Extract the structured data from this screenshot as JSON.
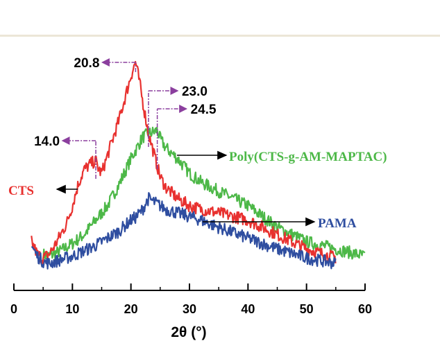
{
  "chart_data": {
    "type": "line",
    "title": "",
    "xlabel": "2θ (°)",
    "ylabel": "",
    "xlim": [
      0,
      60
    ],
    "xticks": [
      0,
      10,
      20,
      30,
      40,
      50,
      60
    ],
    "y_axis_shown": false,
    "grid": false,
    "colors": {
      "CTS": "#e8312f",
      "Poly": "#4db848",
      "PAMA": "#2f4ea0",
      "annotation_arrow": "#8b3f9e"
    },
    "series": [
      {
        "name": "CTS",
        "color": "#e8312f",
        "label_side": "left",
        "x": [
          3,
          4,
          5,
          6,
          7,
          8,
          9,
          10,
          11,
          12,
          13,
          14,
          14.5,
          15,
          16,
          17,
          18,
          19,
          20,
          20.8,
          21.5,
          22,
          23,
          24,
          25,
          26,
          28,
          30,
          32,
          35,
          40,
          45,
          50,
          55
        ],
        "y": [
          12,
          5,
          3,
          5,
          10,
          16,
          22,
          32,
          44,
          52,
          55,
          57,
          52,
          50,
          60,
          70,
          80,
          92,
          104,
          112,
          100,
          90,
          72,
          60,
          48,
          42,
          36,
          32,
          30,
          28,
          24,
          16,
          8,
          3
        ]
      },
      {
        "name": "Poly(CTS-g-AM-MAPTAC)",
        "color": "#4db848",
        "label_side": "right",
        "x": [
          5,
          6,
          8,
          10,
          12,
          14,
          16,
          18,
          20,
          21,
          22,
          23,
          24,
          24.5,
          25,
          26,
          28,
          30,
          32,
          35,
          40,
          45,
          50,
          55,
          60
        ],
        "y": [
          5,
          4,
          7,
          11,
          16,
          24,
          32,
          44,
          58,
          64,
          70,
          72,
          73,
          74,
          69,
          64,
          58,
          50,
          45,
          40,
          32,
          20,
          12,
          8,
          4
        ]
      },
      {
        "name": "PAMA",
        "color": "#2f4ea0",
        "label_side": "right",
        "x": [
          3,
          4,
          5,
          6,
          8,
          10,
          12,
          14,
          16,
          18,
          20,
          21,
          22,
          23,
          24,
          25,
          26,
          28,
          30,
          32,
          35,
          40,
          45,
          50,
          55
        ],
        "y": [
          10,
          4,
          1,
          0,
          2,
          4,
          7,
          10,
          14,
          18,
          24,
          26,
          30,
          36,
          34,
          32,
          30,
          28,
          26,
          24,
          20,
          14,
          8,
          3,
          0
        ]
      }
    ],
    "annotations": [
      {
        "text": "20.8",
        "x": 20.8,
        "direction": "left"
      },
      {
        "text": "23.0",
        "x": 23.0,
        "direction": "right"
      },
      {
        "text": "24.5",
        "x": 24.5,
        "direction": "right"
      },
      {
        "text": "14.0",
        "x": 14.0,
        "direction": "left"
      }
    ]
  }
}
